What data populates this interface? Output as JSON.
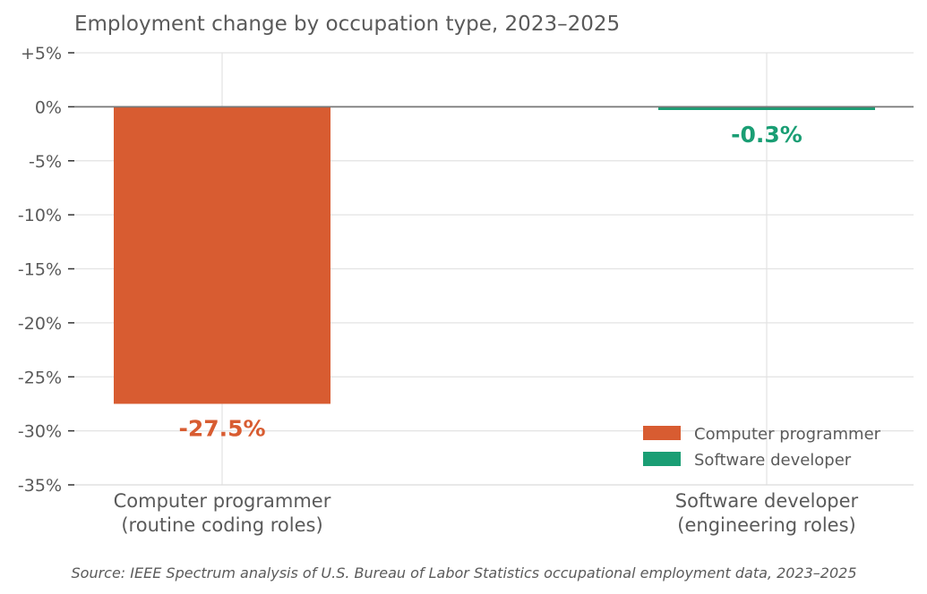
{
  "chart_data": {
    "type": "bar",
    "title": "Employment change by occupation type, 2023–2025",
    "xlabel": "",
    "ylabel": "",
    "ylim": [
      -35,
      5
    ],
    "yticks": [
      5,
      0,
      -5,
      -10,
      -15,
      -20,
      -25,
      -30,
      -35
    ],
    "ytick_labels": [
      "+5%",
      "0%",
      "-5%",
      "-10%",
      "-15%",
      "-20%",
      "-25%",
      "-30%",
      "-35%"
    ],
    "grid": true,
    "legend_position": "lower-right",
    "categories": [
      [
        "Computer programmer",
        "(routine coding roles)"
      ],
      [
        "Software developer",
        "(engineering roles)"
      ]
    ],
    "values": [
      -27.5,
      -0.3
    ],
    "value_labels": [
      "-27.5%",
      "-0.3%"
    ],
    "colors": [
      "#d85c31",
      "#1a9e74"
    ],
    "legend": [
      {
        "label": "Computer programmer",
        "color": "#d85c31"
      },
      {
        "label": "Software developer",
        "color": "#1a9e74"
      }
    ],
    "source": "Source: IEEE Spectrum analysis of U.S. Bureau of Labor Statistics occupational employment data, 2023–2025"
  }
}
